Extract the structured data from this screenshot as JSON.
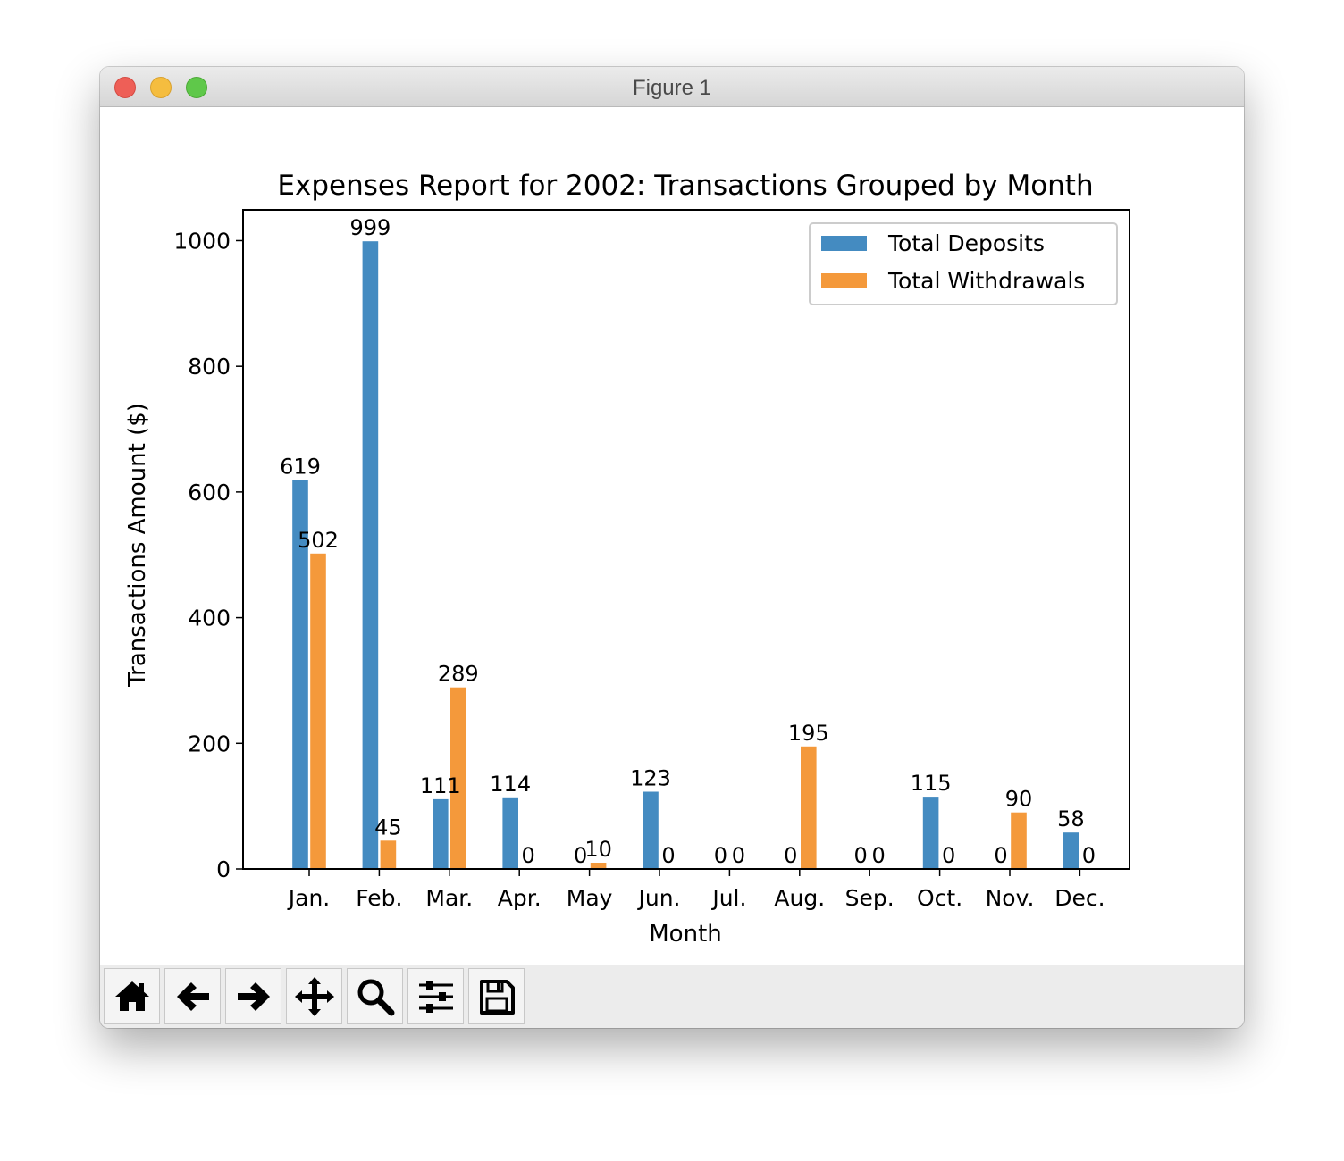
{
  "window": {
    "title": "Figure 1"
  },
  "toolbar": {
    "buttons": [
      {
        "name": "home-button",
        "icon": "home-icon"
      },
      {
        "name": "back-button",
        "icon": "arrow-left-icon"
      },
      {
        "name": "forward-button",
        "icon": "arrow-right-icon"
      },
      {
        "name": "pan-button",
        "icon": "move-icon"
      },
      {
        "name": "zoom-button",
        "icon": "magnifier-icon"
      },
      {
        "name": "configure-subplots-button",
        "icon": "sliders-icon"
      },
      {
        "name": "save-button",
        "icon": "floppy-disk-icon"
      }
    ]
  },
  "chart_data": {
    "type": "bar",
    "title": "Expenses Report for 2002: Transactions Grouped by Month",
    "xlabel": "Month",
    "ylabel": "Transactions Amount ($)",
    "categories": [
      "Jan.",
      "Feb.",
      "Mar.",
      "Apr.",
      "May",
      "Jun.",
      "Jul.",
      "Aug.",
      "Sep.",
      "Oct.",
      "Nov.",
      "Dec."
    ],
    "series": [
      {
        "name": "Total Deposits",
        "color": "#448bc1",
        "values": [
          619,
          999,
          111,
          114,
          0,
          123,
          0,
          0,
          0,
          115,
          0,
          58
        ]
      },
      {
        "name": "Total Withdrawals",
        "color": "#f4993b",
        "values": [
          502,
          45,
          289,
          0,
          10,
          0,
          0,
          195,
          0,
          0,
          90,
          0
        ]
      }
    ],
    "ylim": [
      0,
      1049
    ],
    "yticks": [
      0,
      200,
      400,
      600,
      800,
      1000
    ],
    "legend_position": "upper right",
    "grid": false
  }
}
